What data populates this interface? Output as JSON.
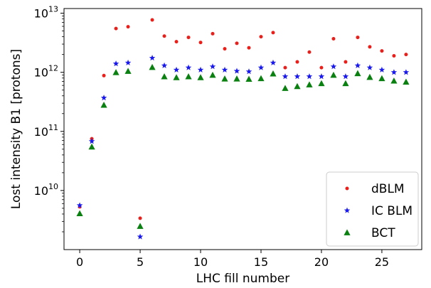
{
  "chart_data": {
    "type": "scatter",
    "xlabel": "LHC fill number",
    "ylabel": "Lost intensity B1 [protons]",
    "xlim": [
      -1.3,
      28.3
    ],
    "ylim": [
      1000000000.0,
      12000000000000
    ],
    "yscale": "log",
    "x_ticks": [
      0,
      5,
      10,
      15,
      20,
      25
    ],
    "x_tick_labels": [
      "0",
      "5",
      "10",
      "15",
      "20",
      "25"
    ],
    "y_ticks": [
      10000000000,
      100000000000,
      1000000000000,
      10000000000000
    ],
    "y_tick_labels": [
      {
        "base": "10",
        "exp": "10"
      },
      {
        "base": "10",
        "exp": "11"
      },
      {
        "base": "10",
        "exp": "12"
      },
      {
        "base": "10",
        "exp": "13"
      }
    ],
    "legend_position": "lower right",
    "x": [
      0,
      1,
      2,
      3,
      4,
      5,
      6,
      7,
      8,
      9,
      10,
      11,
      12,
      13,
      14,
      15,
      16,
      17,
      18,
      19,
      20,
      21,
      22,
      23,
      24,
      25,
      26,
      27
    ],
    "series": [
      {
        "name": "dBLM",
        "marker": "dot",
        "color": "#e8201c",
        "values": [
          5300000000,
          75000000000,
          880000000000,
          5500000000000,
          5900000000000,
          3400000000,
          7700000000000,
          4100000000000,
          3300000000000,
          3900000000000,
          3200000000000,
          4500000000000,
          2500000000000,
          3100000000000,
          2600000000000,
          4000000000000,
          4700000000000,
          1200000000000,
          1500000000000,
          2200000000000,
          1200000000000,
          3700000000000,
          1500000000000,
          3900000000000,
          2700000000000,
          2300000000000,
          1900000000000,
          2000000000000
        ]
      },
      {
        "name": "IC BLM",
        "marker": "star",
        "color": "#1a1aee",
        "values": [
          5600000000,
          68000000000,
          370000000000,
          1400000000000,
          1450000000000,
          1650000000,
          1750000000000,
          1300000000000,
          1100000000000,
          1200000000000,
          1100000000000,
          1250000000000,
          1100000000000,
          1050000000000,
          1030000000000,
          1200000000000,
          1450000000000,
          850000000000,
          850000000000,
          850000000000,
          850000000000,
          1250000000000,
          850000000000,
          1300000000000,
          1200000000000,
          1100000000000,
          1000000000000,
          1000000000000
        ]
      },
      {
        "name": "BCT",
        "marker": "triangle",
        "color": "#0a8010",
        "values": [
          4100000000,
          55000000000,
          280000000000,
          1000000000000,
          1050000000000,
          2500000000,
          1220000000000,
          850000000000,
          820000000000,
          850000000000,
          820000000000,
          900000000000,
          780000000000,
          780000000000,
          770000000000,
          790000000000,
          950000000000,
          540000000000,
          580000000000,
          620000000000,
          650000000000,
          900000000000,
          650000000000,
          960000000000,
          830000000000,
          790000000000,
          720000000000,
          690000000000
        ]
      }
    ]
  }
}
